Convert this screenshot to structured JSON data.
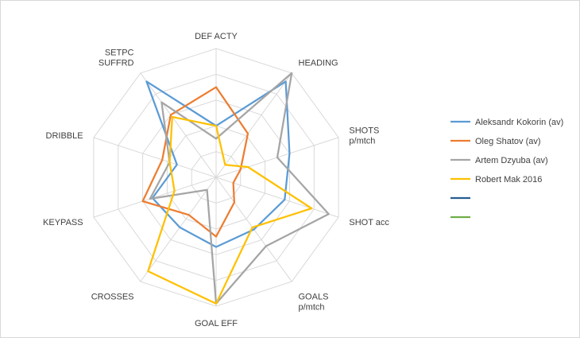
{
  "chart_data": {
    "type": "radar",
    "axes": [
      [
        "DEF ACTY"
      ],
      [
        "HEADING"
      ],
      [
        "SHOTS",
        "p/mtch"
      ],
      [
        "SHOT acc"
      ],
      [
        "GOALS",
        "p/mtch"
      ],
      [
        "GOAL EFF"
      ],
      [
        "CROSSES"
      ],
      [
        "KEYPASS"
      ],
      [
        "DRIBBLE"
      ],
      [
        "SETPC",
        "SUFFRD"
      ]
    ],
    "range": [
      0,
      5
    ],
    "gridlines": 5,
    "series": [
      {
        "name": "Aleksandr Kokorin (av)",
        "color": "#5b9bd5",
        "values": [
          2.0,
          4.6,
          3.0,
          2.8,
          2.5,
          2.7,
          2.4,
          2.6,
          1.6,
          4.6
        ]
      },
      {
        "name": "Oleg Shatov (av)",
        "color": "#ed7d31",
        "values": [
          3.5,
          2.1,
          1.0,
          0.7,
          1.2,
          2.3,
          1.8,
          3.0,
          2.2,
          3.0
        ]
      },
      {
        "name": "Artem Dzyuba (av)",
        "color": "#a5a5a5",
        "values": [
          1.5,
          5.0,
          2.5,
          4.6,
          3.3,
          4.9,
          0.6,
          2.7,
          1.9,
          3.6
        ]
      },
      {
        "name": "Robert Mak 2016",
        "color": "#ffc000",
        "values": [
          2.0,
          0.6,
          1.3,
          3.9,
          2.4,
          4.9,
          4.5,
          1.7,
          1.9,
          2.9
        ]
      },
      {
        "name": "",
        "color": "#255e91",
        "values": []
      },
      {
        "name": "",
        "color": "#70ad47",
        "values": []
      }
    ],
    "legend": "right"
  }
}
